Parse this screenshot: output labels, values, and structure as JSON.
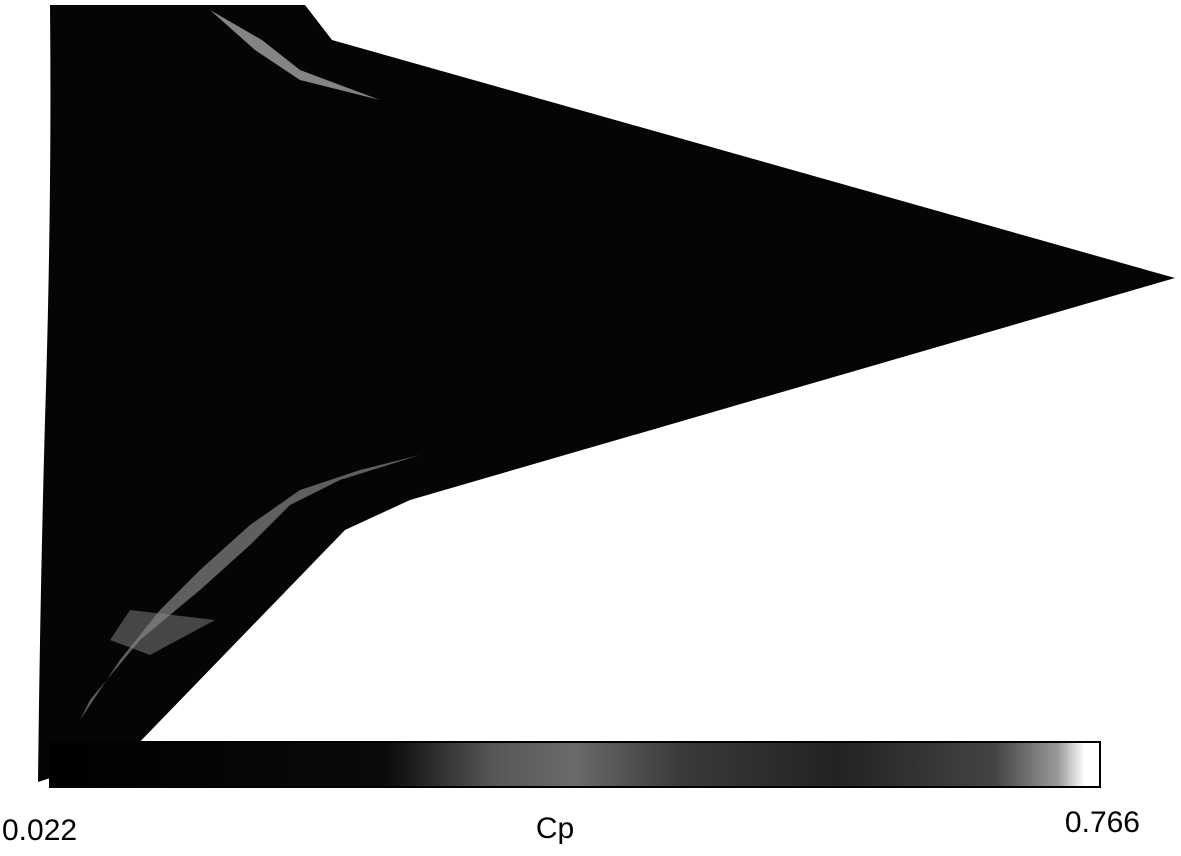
{
  "colorbar": {
    "min": 0.022,
    "title": "Cp",
    "max": 0.766
  }
}
